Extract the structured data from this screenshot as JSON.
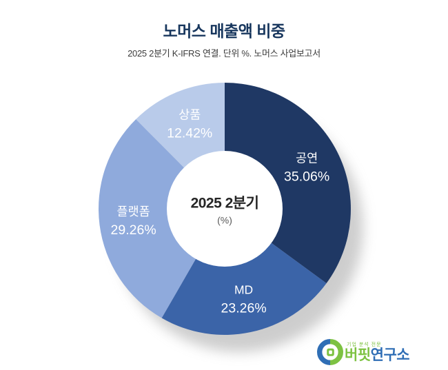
{
  "header": {
    "title": "노머스 매출액 비중",
    "subtitle": "2025 2분기 K-IFRS 연결. 단위 %. 노머스 사업보고서"
  },
  "chart_data": {
    "type": "pie",
    "subtype": "donut",
    "title": "노머스 매출액 비중",
    "period": "2025 2분기",
    "unit": "%",
    "start_angle_deg": 0,
    "direction": "clockwise",
    "inner_radius_ratio": 0.46,
    "center_label": {
      "line1": "2025 2분기",
      "line2": "(%)"
    },
    "categories": [
      "공연",
      "MD",
      "플랫폼",
      "상품"
    ],
    "values": [
      35.06,
      23.26,
      29.26,
      12.42
    ],
    "segments": [
      {
        "label": "공연",
        "value": 35.06,
        "color": "#1F3864",
        "text_color": "#FFFFFF"
      },
      {
        "label": "MD",
        "value": 23.26,
        "color": "#3B64A8",
        "text_color": "#FFFFFF"
      },
      {
        "label": "플랫폼",
        "value": 29.26,
        "color": "#8FAADC",
        "text_color": "#FFFFFF"
      },
      {
        "label": "상품",
        "value": 12.42,
        "color": "#B9CBEA",
        "text_color": "#FFFFFF"
      }
    ]
  },
  "logo": {
    "tagline": "기업 분석 전문",
    "brand_green": "버핏",
    "brand_blue": "연구소",
    "green_color": "#7DC242",
    "blue_color": "#2F6EB5"
  }
}
